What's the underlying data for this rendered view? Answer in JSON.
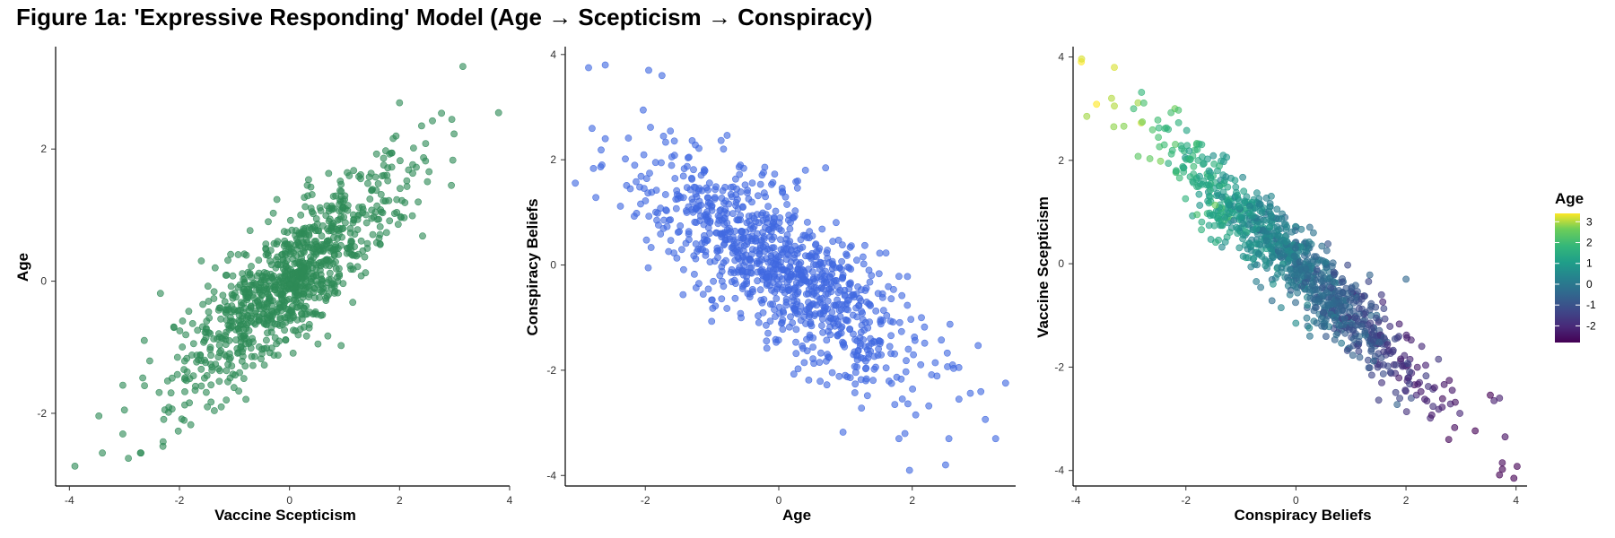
{
  "figure": {
    "title": "Figure 1a: 'Expressive Responding' Model (Age → Scepticism → Conspiracy)"
  },
  "chart_data": [
    {
      "type": "scatter",
      "xlabel": "Vaccine Scepticism",
      "ylabel": "Age",
      "xlim": [
        -4.25,
        4.0
      ],
      "ylim": [
        -3.1,
        3.55
      ],
      "xticks": [
        -4,
        -2,
        0,
        2,
        4
      ],
      "yticks": [
        -2,
        0,
        2
      ],
      "grid": false,
      "point_color": "#2e8b57",
      "point_count": 1000,
      "relationship": {
        "slope": 0.7,
        "intercept": 0.0,
        "residual_sd": 0.45,
        "x_sd": 1.0
      },
      "sample_points": [
        {
          "x": -3.9,
          "y": -2.8
        },
        {
          "x": -3.4,
          "y": -2.6
        },
        {
          "x": -2.7,
          "y": -2.6
        },
        {
          "x": -3.0,
          "y": -1.95
        },
        {
          "x": -2.3,
          "y": -2.5
        },
        {
          "x": 3.15,
          "y": 3.25
        },
        {
          "x": 3.8,
          "y": 2.55
        },
        {
          "x": 2.0,
          "y": 2.7
        },
        {
          "x": 2.4,
          "y": 2.35
        },
        {
          "x": -2.1,
          "y": -0.7
        },
        {
          "x": 2.95,
          "y": 2.45
        }
      ]
    },
    {
      "type": "scatter",
      "xlabel": "Age",
      "ylabel": "Conspiracy Beliefs",
      "xlim": [
        -3.2,
        3.55
      ],
      "ylim": [
        -4.2,
        4.15
      ],
      "xticks": [
        -2,
        0,
        2
      ],
      "yticks": [
        -4,
        -2,
        0,
        2,
        4
      ],
      "grid": false,
      "point_color": "#4169e1",
      "point_count": 1000,
      "relationship": {
        "slope": -0.8,
        "intercept": 0.0,
        "residual_sd": 0.7,
        "x_sd": 1.0
      },
      "sample_points": [
        {
          "x": -2.85,
          "y": 3.75
        },
        {
          "x": -2.6,
          "y": 3.8
        },
        {
          "x": -1.95,
          "y": 3.7
        },
        {
          "x": -1.75,
          "y": 3.6
        },
        {
          "x": -2.6,
          "y": 2.4
        },
        {
          "x": -2.65,
          "y": 1.9
        },
        {
          "x": 3.25,
          "y": -3.3
        },
        {
          "x": 2.5,
          "y": -3.8
        },
        {
          "x": 2.55,
          "y": -3.3
        },
        {
          "x": 2.7,
          "y": -2.55
        },
        {
          "x": 0.4,
          "y": 1.8
        },
        {
          "x": 1.8,
          "y": -3.3
        }
      ]
    },
    {
      "type": "scatter",
      "xlabel": "Conspiracy Beliefs",
      "ylabel": "Vaccine Scepticism",
      "xlim": [
        -4.05,
        4.2
      ],
      "ylim": [
        -4.3,
        4.2
      ],
      "xticks": [
        -4,
        -2,
        0,
        2,
        4
      ],
      "yticks": [
        -4,
        -2,
        0,
        2,
        4
      ],
      "grid": false,
      "color_by": "Age",
      "colormap": "viridis",
      "point_count": 1000,
      "relationship": {
        "slope": -0.95,
        "intercept": 0.0,
        "residual_sd": 0.4,
        "x_sd": 1.2
      },
      "sample_points": [
        {
          "x": -3.8,
          "y": 2.85,
          "c": 2.9
        },
        {
          "x": -3.3,
          "y": 3.8,
          "c": 3.2
        },
        {
          "x": -3.35,
          "y": 3.2,
          "c": 3.0
        },
        {
          "x": -3.3,
          "y": 3.05,
          "c": 3.0
        },
        {
          "x": -2.2,
          "y": 3.0,
          "c": 2.6
        },
        {
          "x": 3.8,
          "y": -3.35,
          "c": -2.5
        },
        {
          "x": 3.75,
          "y": -3.85,
          "c": -2.7
        },
        {
          "x": 3.6,
          "y": -2.65,
          "c": -2.2
        },
        {
          "x": 3.7,
          "y": -2.6,
          "c": -2.2
        },
        {
          "x": 2.0,
          "y": -0.3,
          "c": -0.5
        }
      ],
      "legend": {
        "title": "Age",
        "position": "right",
        "range": [
          -2.8,
          3.4
        ],
        "ticks": [
          "3",
          "2",
          "1",
          "0",
          "-1",
          "-2"
        ],
        "tick_values": [
          3,
          2,
          1,
          0,
          -1,
          -2
        ]
      }
    }
  ]
}
